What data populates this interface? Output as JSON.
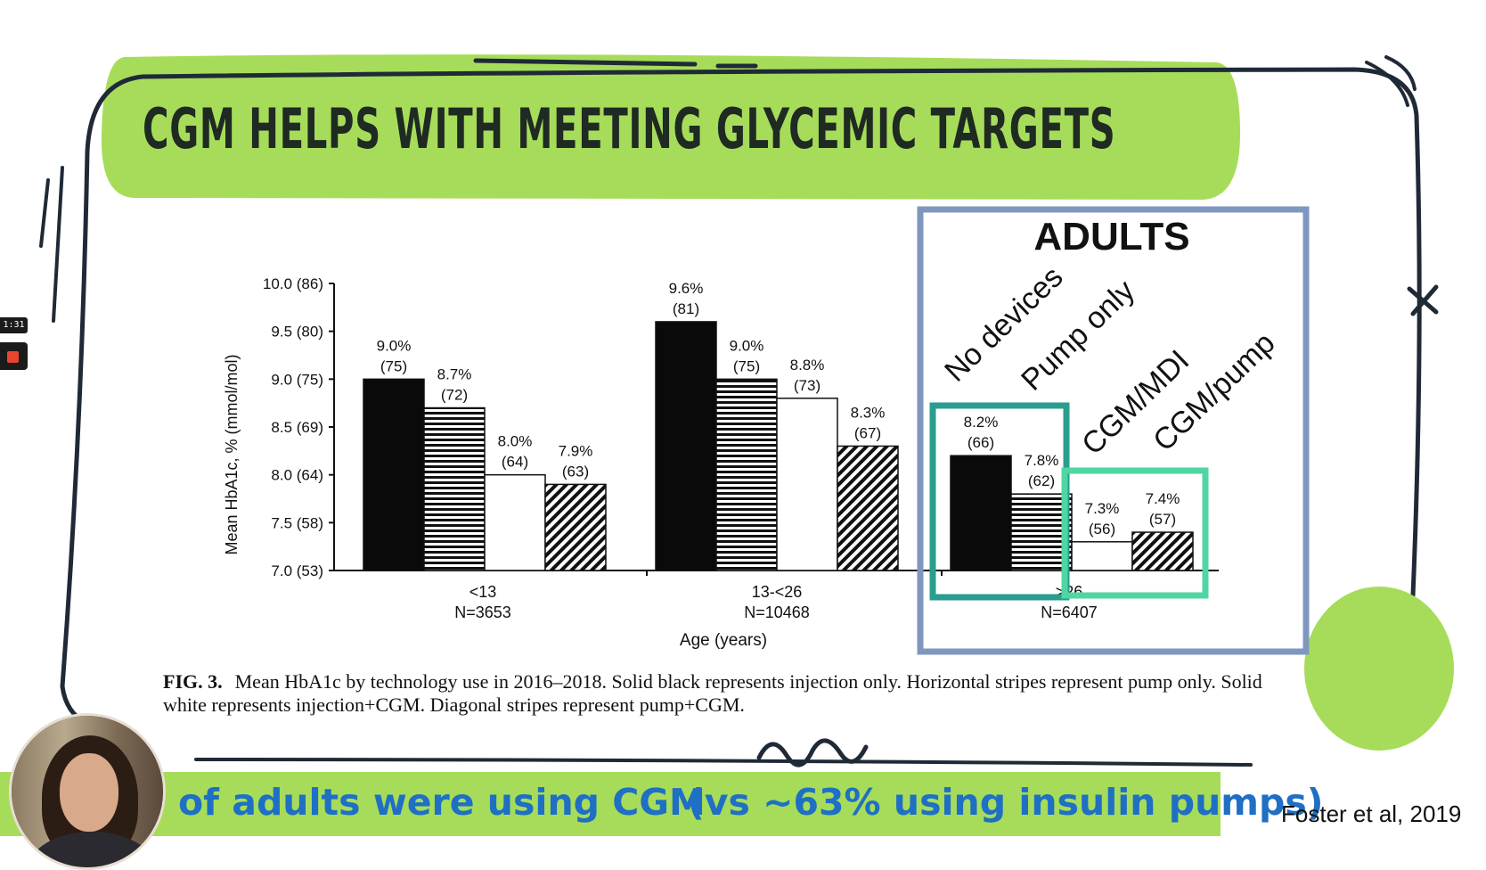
{
  "slide": {
    "title": "CGM HELPS WITH MEETING GLYCEMIC TARGETS",
    "adults_label": "ADULTS",
    "group_labels": [
      "No devices",
      "Pump only",
      "CGM/MDI",
      "CGM/pump"
    ],
    "caption_label": "FIG. 3.",
    "caption_text": "Mean HbA1c by technology use in 2016–2018. Solid black represents injection only. Horizontal stripes represent pump only. Solid white represents injection+CGM. Diagonal stripes represent pump+CGM.",
    "lower_left": "of adults were using CGM",
    "lower_right": "(vs ~63% using insulin pumps)",
    "citation": "Foster et al, 2019",
    "recording_time": "1:31"
  },
  "colors": {
    "accent_green": "#a6dc5a",
    "frame_blue": "#7f97bf",
    "teal_box": "#2a9d8f",
    "mint_box": "#4fd6a2",
    "lower_text_blue": "#1f6fc4"
  },
  "chart_data": {
    "type": "bar",
    "ylabel": "Mean HbA1c, % (mmol/mol)",
    "xlabel": "Age (years)",
    "ylim": [
      7.0,
      10.0
    ],
    "yticks": [
      "7.0 (53)",
      "7.5 (58)",
      "8.0 (64)",
      "8.5 (69)",
      "9.0 (75)",
      "9.5 (80)",
      "10.0 (86)"
    ],
    "categories": [
      {
        "label": "<13",
        "n": "N=3653"
      },
      {
        "label": "13-<26",
        "n": "N=10468"
      },
      {
        "label": ">26",
        "n": "N=6407"
      }
    ],
    "series": [
      {
        "name": "Injection only",
        "fill": "black",
        "values": [
          9.0,
          9.6,
          8.2
        ],
        "labels": [
          [
            "9.0%",
            "(75)"
          ],
          [
            "9.6%",
            "(81)"
          ],
          [
            "8.2%",
            "(66)"
          ]
        ]
      },
      {
        "name": "Pump only",
        "fill": "hstripe",
        "values": [
          8.7,
          9.0,
          7.8
        ],
        "labels": [
          [
            "8.7%",
            "(72)"
          ],
          [
            "9.0%",
            "(75)"
          ],
          [
            "7.8%",
            "(62)"
          ]
        ]
      },
      {
        "name": "Injection+CGM",
        "fill": "white",
        "values": [
          8.0,
          8.8,
          7.3
        ],
        "labels": [
          [
            "8.0%",
            "(64)"
          ],
          [
            "8.8%",
            "(73)"
          ],
          [
            "7.3%",
            "(56)"
          ]
        ]
      },
      {
        "name": "Pump+CGM",
        "fill": "dstripe",
        "values": [
          7.9,
          8.3,
          7.4
        ],
        "labels": [
          [
            "7.9%",
            "(63)"
          ],
          [
            "8.3%",
            "(67)"
          ],
          [
            "7.4%",
            "(57)"
          ]
        ]
      }
    ]
  }
}
